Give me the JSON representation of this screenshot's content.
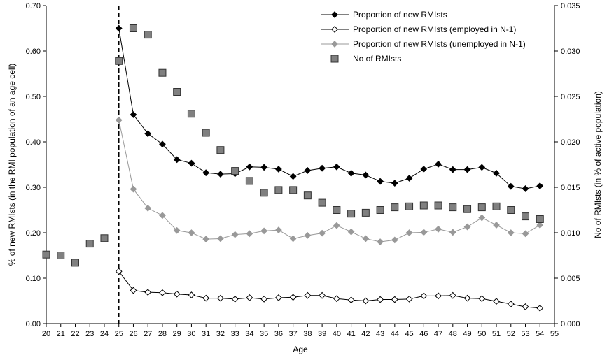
{
  "chart_data": {
    "type": "line",
    "title": "",
    "xlabel": "Age",
    "ylabel_left": "% of new RMIsts (in the RMI population of an age cell)",
    "ylabel_right": "No of RMIsts (in % of active population)",
    "x_ticks": [
      "20",
      "21",
      "22",
      "23",
      "24",
      "25",
      "26",
      "27",
      "28",
      "29",
      "30",
      "31",
      "32",
      "33",
      "34",
      "35",
      "36",
      "37",
      "38",
      "39",
      "40",
      "41",
      "42",
      "43",
      "44",
      "45",
      "46",
      "47",
      "48",
      "49",
      "50",
      "51",
      "52",
      "53",
      "54",
      "55"
    ],
    "y_left_ticks": [
      "0.00",
      "0.10",
      "0.20",
      "0.30",
      "0.40",
      "0.50",
      "0.60",
      "0.70"
    ],
    "y_right_ticks": [
      "0.000",
      "0.005",
      "0.010",
      "0.015",
      "0.020",
      "0.025",
      "0.030",
      "0.035"
    ],
    "xlim": [
      20,
      55
    ],
    "ylim_left": [
      0,
      0.7
    ],
    "ylim_right": [
      0,
      0.035
    ],
    "grid": false,
    "legend_position": "top-right",
    "vertical_reference_line_x": 25,
    "series": [
      {
        "name": "Proportion of new RMIsts",
        "axis": "left",
        "style": "line-filled-diamond",
        "color": "#000000",
        "x": [
          25,
          26,
          27,
          28,
          29,
          30,
          31,
          32,
          33,
          34,
          35,
          36,
          37,
          38,
          39,
          40,
          41,
          42,
          43,
          44,
          45,
          46,
          47,
          48,
          49,
          50,
          51,
          52,
          53,
          54
        ],
        "values": [
          0.65,
          0.46,
          0.418,
          0.395,
          0.361,
          0.353,
          0.332,
          0.329,
          0.33,
          0.345,
          0.344,
          0.34,
          0.324,
          0.337,
          0.342,
          0.345,
          0.331,
          0.327,
          0.313,
          0.309,
          0.32,
          0.34,
          0.351,
          0.339,
          0.339,
          0.344,
          0.331,
          0.302,
          0.297,
          0.303
        ]
      },
      {
        "name": "Proportion of new RMIsts (employed in N-1)",
        "axis": "left",
        "style": "line-open-diamond",
        "color": "#000000",
        "x": [
          25,
          26,
          27,
          28,
          29,
          30,
          31,
          32,
          33,
          34,
          35,
          36,
          37,
          38,
          39,
          40,
          41,
          42,
          43,
          44,
          45,
          46,
          47,
          48,
          49,
          50,
          51,
          52,
          53,
          54
        ],
        "values": [
          0.115,
          0.073,
          0.069,
          0.068,
          0.065,
          0.063,
          0.056,
          0.056,
          0.054,
          0.057,
          0.054,
          0.057,
          0.058,
          0.062,
          0.062,
          0.055,
          0.052,
          0.05,
          0.053,
          0.053,
          0.054,
          0.061,
          0.061,
          0.062,
          0.056,
          0.055,
          0.049,
          0.043,
          0.037,
          0.034
        ]
      },
      {
        "name": "Proportion of new RMIsts (unemployed in N-1)",
        "axis": "left",
        "style": "line-gray-diamond",
        "color": "#999999",
        "x": [
          25,
          26,
          27,
          28,
          29,
          30,
          31,
          32,
          33,
          34,
          35,
          36,
          37,
          38,
          39,
          40,
          41,
          42,
          43,
          44,
          45,
          46,
          47,
          48,
          49,
          50,
          51,
          52,
          53,
          54
        ],
        "values": [
          0.448,
          0.296,
          0.254,
          0.238,
          0.205,
          0.2,
          0.186,
          0.187,
          0.196,
          0.198,
          0.204,
          0.206,
          0.187,
          0.194,
          0.199,
          0.216,
          0.202,
          0.187,
          0.18,
          0.184,
          0.2,
          0.201,
          0.208,
          0.201,
          0.213,
          0.233,
          0.217,
          0.2,
          0.198,
          0.217
        ]
      },
      {
        "name": "No of RMIsts",
        "axis": "right",
        "style": "square-markers",
        "color": "#808080",
        "x": [
          20,
          21,
          22,
          23,
          24,
          25,
          26,
          27,
          28,
          29,
          30,
          31,
          32,
          33,
          34,
          35,
          36,
          37,
          38,
          39,
          40,
          41,
          42,
          43,
          44,
          45,
          46,
          47,
          48,
          49,
          50,
          51,
          52,
          53,
          54
        ],
        "values": [
          0.0076,
          0.0075,
          0.0067,
          0.0088,
          0.0094,
          0.0289,
          0.0325,
          0.0318,
          0.0276,
          0.0255,
          0.0231,
          0.021,
          0.0191,
          0.0168,
          0.0157,
          0.0144,
          0.0147,
          0.0147,
          0.0141,
          0.0133,
          0.0125,
          0.0121,
          0.0122,
          0.0125,
          0.0128,
          0.0129,
          0.013,
          0.013,
          0.0128,
          0.0126,
          0.0128,
          0.0129,
          0.0125,
          0.0118,
          0.0115
        ]
      }
    ]
  }
}
